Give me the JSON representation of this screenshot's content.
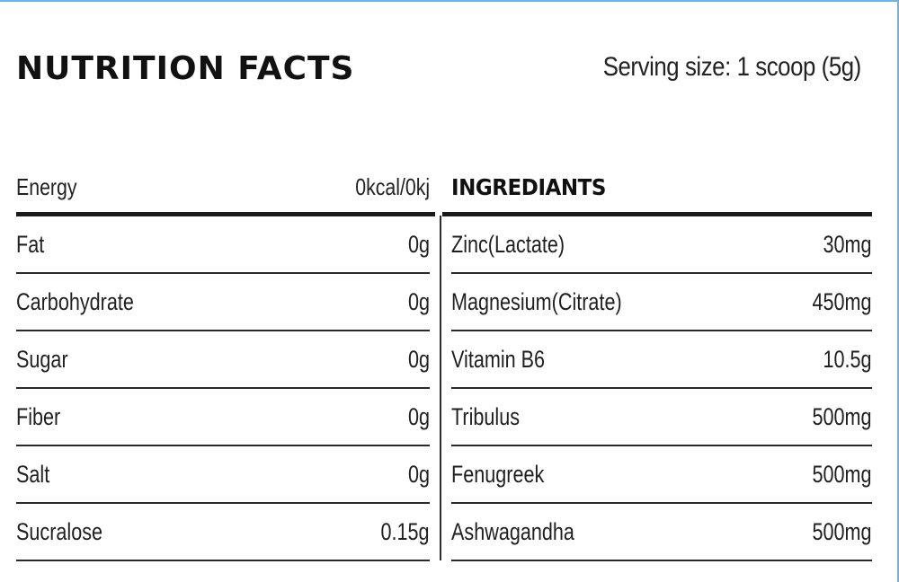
{
  "title": "NUTRITION  FACTS",
  "serving_size": "Serving size: 1 scoop (5g)",
  "nutrition": {
    "header": {
      "label": "Energy",
      "value": "0kcal/0kj"
    },
    "rows": [
      {
        "label": "Fat",
        "value": "0g"
      },
      {
        "label": "Carbohydrate",
        "value": "0g"
      },
      {
        "label": "Sugar",
        "value": "0g"
      },
      {
        "label": "Fiber",
        "value": "0g"
      },
      {
        "label": "Salt",
        "value": "0g"
      },
      {
        "label": "Sucralose",
        "value": "0.15g"
      }
    ]
  },
  "ingredients": {
    "heading": "INGREDIANTS",
    "rows": [
      {
        "label": "Zinc(Lactate)",
        "value": "30mg"
      },
      {
        "label": "Magnesium(Citrate)",
        "value": "450mg"
      },
      {
        "label": "Vitamin B6",
        "value": "10.5g"
      },
      {
        "label": "Tribulus",
        "value": "500mg"
      },
      {
        "label": "Fenugreek",
        "value": "500mg"
      },
      {
        "label": "Ashwagandha",
        "value": "500mg"
      }
    ]
  }
}
